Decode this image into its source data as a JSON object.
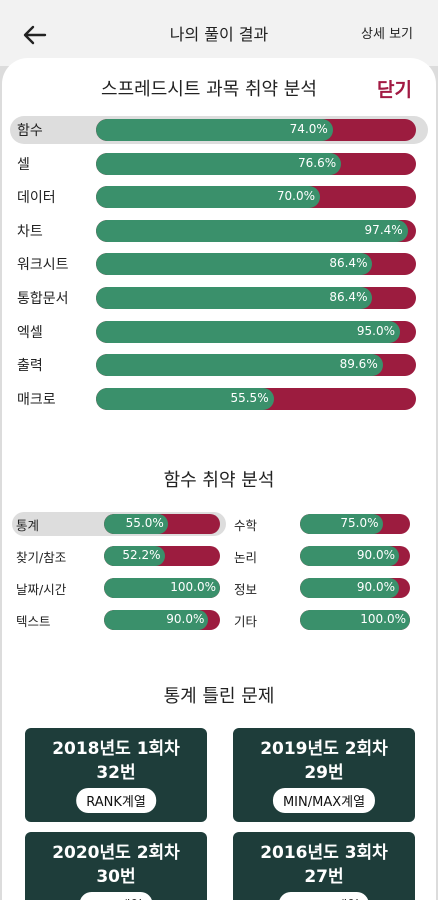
{
  "header": {
    "title": "나의 풀이 결과",
    "detail_link": "상세 보기"
  },
  "subject_section": {
    "title": "스프레드시트 과목 취약 분석",
    "close_label": "닫기",
    "items": [
      {
        "label": "함수",
        "percent": 74.0,
        "percent_text": "74.0%",
        "selected": true
      },
      {
        "label": "셀",
        "percent": 76.6,
        "percent_text": "76.6%"
      },
      {
        "label": "데이터",
        "percent": 70.0,
        "percent_text": "70.0%"
      },
      {
        "label": "차트",
        "percent": 97.4,
        "percent_text": "97.4%"
      },
      {
        "label": "워크시트",
        "percent": 86.4,
        "percent_text": "86.4%"
      },
      {
        "label": "통합문서",
        "percent": 86.4,
        "percent_text": "86.4%"
      },
      {
        "label": "엑셀",
        "percent": 95.0,
        "percent_text": "95.0%"
      },
      {
        "label": "출력",
        "percent": 89.6,
        "percent_text": "89.6%"
      },
      {
        "label": "매크로",
        "percent": 55.5,
        "percent_text": "55.5%"
      }
    ]
  },
  "function_section": {
    "title": "함수 취약 분석",
    "left": [
      {
        "label": "통계",
        "percent": 55.0,
        "percent_text": "55.0%",
        "selected": true
      },
      {
        "label": "찾기/참조",
        "percent": 52.2,
        "percent_text": "52.2%"
      },
      {
        "label": "날짜/시간",
        "percent": 100.0,
        "percent_text": "100.0%"
      },
      {
        "label": "텍스트",
        "percent": 90.0,
        "percent_text": "90.0%"
      }
    ],
    "right": [
      {
        "label": "수학",
        "percent": 75.0,
        "percent_text": "75.0%"
      },
      {
        "label": "논리",
        "percent": 90.0,
        "percent_text": "90.0%"
      },
      {
        "label": "정보",
        "percent": 90.0,
        "percent_text": "90.0%"
      },
      {
        "label": "기타",
        "percent": 100.0,
        "percent_text": "100.0%"
      }
    ]
  },
  "wrong_section": {
    "title": "통계 틀린 문제",
    "cards": [
      {
        "exam": "2018년도 1회차",
        "number": "32번",
        "tag": "RANK계열"
      },
      {
        "exam": "2019년도 2회차",
        "number": "29번",
        "tag": "MIN/MAX계열"
      },
      {
        "exam": "2020년도 2회차",
        "number": "30번",
        "tag": "SUM계열"
      },
      {
        "exam": "2016년도 3회차",
        "number": "27번",
        "tag": "COUNT계열"
      }
    ]
  },
  "colors": {
    "correct": "#3a906b",
    "wrong": "#9c1c3f",
    "accent": "#a21a43",
    "card_bg": "#1e3d3a"
  }
}
